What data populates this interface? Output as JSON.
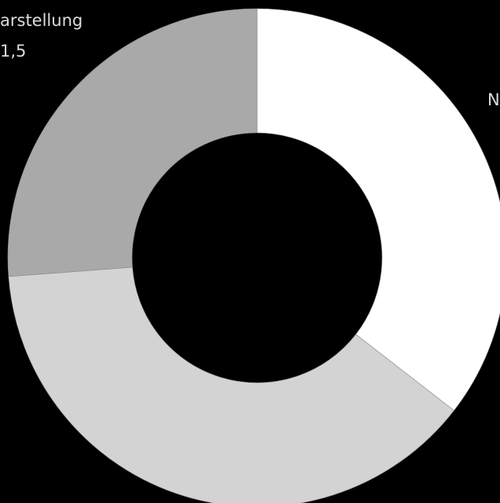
{
  "chart_data": {
    "type": "pie",
    "donut": true,
    "categories": [
      "N",
      "",
      "arstellung"
    ],
    "values": [
      null,
      null,
      1.5
    ],
    "value_labels": [
      "",
      "",
      "1,5"
    ],
    "slice_shares": [
      0.355,
      0.383,
      0.262
    ],
    "colors": [
      "#ffffff",
      "#d3d3d3",
      "#a9a9a9"
    ],
    "title": "",
    "legend": "none"
  },
  "labels": {
    "right_partial": "N",
    "left_partial_name": "arstellung",
    "left_partial_value": "1,5"
  }
}
